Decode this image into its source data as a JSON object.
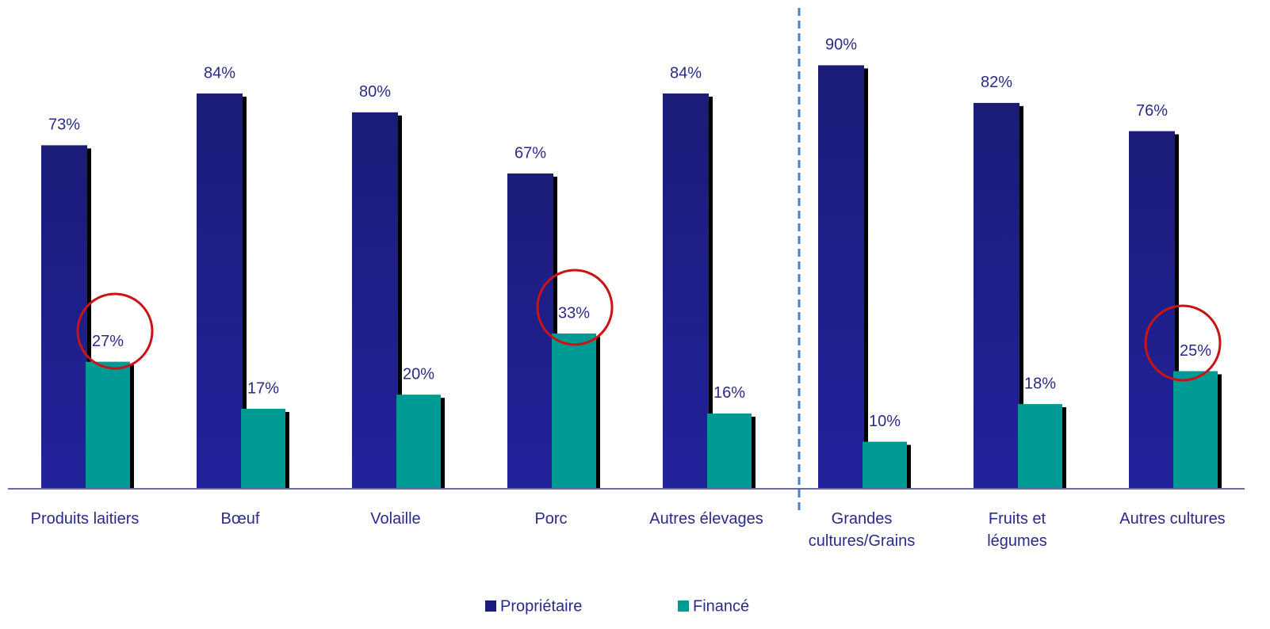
{
  "chart_data": {
    "type": "bar",
    "categories": [
      "Produits laitiers",
      "Bœuf",
      "Volaille",
      "Porc",
      "Autres élevages",
      "Grandes\ncultures/Grains",
      "Fruits et\nlégumes",
      "Autres cultures"
    ],
    "series": [
      {
        "name": "Propriétaire",
        "color": "#1b1b7e",
        "values": [
          73,
          84,
          80,
          67,
          84,
          90,
          82,
          76
        ],
        "value_labels": [
          "73%",
          "84%",
          "80%",
          "67%",
          "84%",
          "90%",
          "82%",
          "76%"
        ]
      },
      {
        "name": "Financé",
        "color": "#009a95",
        "values": [
          27,
          17,
          20,
          33,
          16,
          10,
          18,
          25
        ],
        "value_labels": [
          "27%",
          "17%",
          "20%",
          "33%",
          "16%",
          "10%",
          "18%",
          "25%"
        ]
      }
    ],
    "ylim": [
      0,
      100
    ]
  }
}
